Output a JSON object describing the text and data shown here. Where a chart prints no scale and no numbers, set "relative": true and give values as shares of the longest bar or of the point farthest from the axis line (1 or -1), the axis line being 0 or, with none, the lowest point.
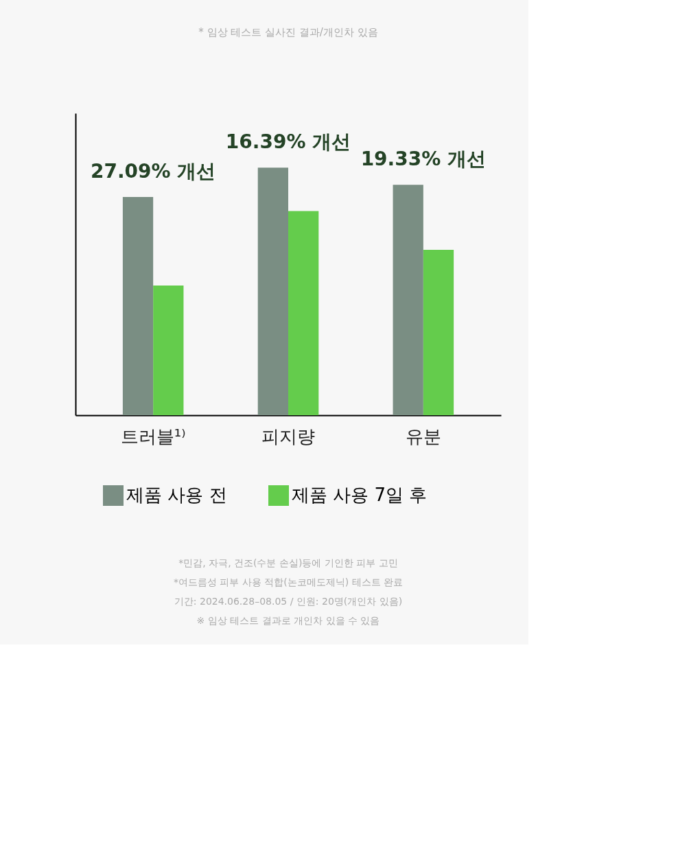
{
  "chart_data": {
    "type": "bar",
    "title": "* 임상 테스트 실사진 결과/개인차 있음",
    "relative": true,
    "categories": [
      "트러블¹⁾",
      "피지량",
      "유분"
    ],
    "series": [
      {
        "name": "제품 사용 전",
        "color": "#7a8e83",
        "values": [
          0.882,
          1,
          0.931
        ]
      },
      {
        "name": "제품 사용 7일 후",
        "color": "#64cc4c",
        "values": [
          0.524,
          0.825,
          0.668
        ]
      }
    ],
    "annotations": [
      "27.09% 개선",
      "16.39% 개선",
      "19.33% 개선",
      "*민감, 자극, 건조(수분 손실)등에 기인한 피부 고민",
      "*여드름성 피부 사용 적합(논코메도제닉) 테스트 완료",
      "기간: 2024.06.28–08.05 / 인원: 20명(개인차 있음)",
      "※ 임상 테스트 결과로 개인차 있을 수 있음"
    ],
    "legend": "bottom"
  }
}
